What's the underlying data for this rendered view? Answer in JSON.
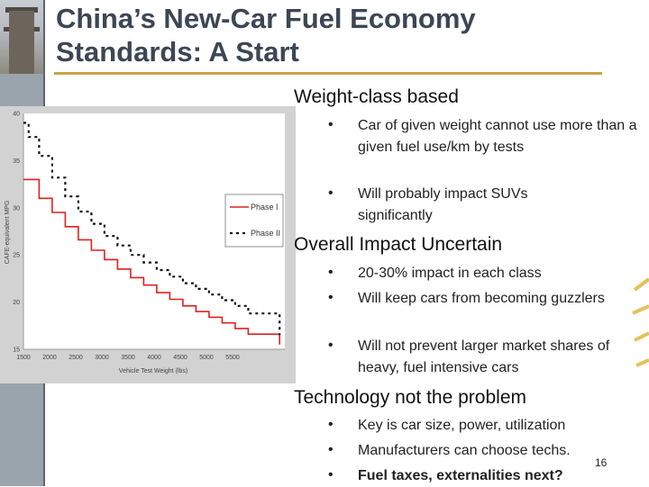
{
  "title": {
    "line1": "China’s  New-Car Fuel Economy",
    "line2": "Standards: A Start"
  },
  "sections": [
    {
      "heading": "Weight-class based",
      "bullets": [
        "Car of given weight cannot use more than a given fuel use/km by tests",
        "Will probably impact SUVs significantly"
      ]
    },
    {
      "heading": "Overall Impact Uncertain",
      "bullets": [
        "20-30% impact in each class",
        "Will keep cars from becoming guzzlers",
        "Will not prevent larger market shares of heavy, fuel intensive cars"
      ]
    },
    {
      "heading": "Technology not the problem",
      "bullets": [
        "Key is car size, power, utilization",
        "Manufacturers can choose techs.",
        "Fuel taxes, externalities next?"
      ]
    }
  ],
  "bullet_glyph": "•",
  "page_number": "16",
  "colors": {
    "title": "#3c4654",
    "underline": "#c9a34a",
    "phase1": "#e02020",
    "phase2": "#111111",
    "sidebar": "#9aa4ad"
  },
  "chart_data": {
    "type": "line",
    "title": "",
    "xlabel": "Vehicle Test Weight (lbs)",
    "ylabel": "CAFE-equivalent MPG",
    "xlim": [
      1500,
      6500
    ],
    "ylim": [
      15,
      40
    ],
    "x_ticks": [
      "1500",
      "2000",
      "2500",
      "3000",
      "3500",
      "4000",
      "4500",
      "5000",
      "5500"
    ],
    "y_ticks": [
      "15",
      "20",
      "25",
      "30",
      "35",
      "40"
    ],
    "legend_position": "right",
    "series": [
      {
        "name": "Phase I",
        "style": "solid",
        "x": [
          1500,
          1800,
          1800,
          2050,
          2050,
          2300,
          2300,
          2550,
          2550,
          2800,
          2800,
          3050,
          3050,
          3300,
          3300,
          3550,
          3550,
          3800,
          3800,
          4050,
          4050,
          4300,
          4300,
          4550,
          4550,
          4800,
          4800,
          5050,
          5050,
          5300,
          5300,
          5550,
          5550,
          5800,
          5800,
          6400,
          6400
        ],
        "y": [
          33,
          33,
          31,
          31,
          29.5,
          29.5,
          28,
          28,
          26.6,
          26.6,
          25.5,
          25.5,
          24.5,
          24.5,
          23.5,
          23.5,
          22.6,
          22.6,
          21.8,
          21.8,
          21,
          21,
          20.3,
          20.3,
          19.6,
          19.6,
          19,
          19,
          18.4,
          18.4,
          17.8,
          17.8,
          17.2,
          17.2,
          16.6,
          16.6,
          15.5
        ]
      },
      {
        "name": "Phase II",
        "style": "dotted",
        "x": [
          1500,
          1600,
          1600,
          1800,
          1800,
          2050,
          2050,
          2300,
          2300,
          2550,
          2550,
          2800,
          2800,
          3050,
          3050,
          3300,
          3300,
          3550,
          3550,
          3800,
          3800,
          4050,
          4050,
          4300,
          4300,
          4550,
          4550,
          4800,
          4800,
          5050,
          5050,
          5300,
          5300,
          5550,
          5550,
          5800,
          5800,
          6400,
          6400
        ],
        "y": [
          39,
          39,
          37.5,
          37.5,
          35.5,
          35.5,
          33.2,
          33.2,
          31.2,
          31.2,
          29.6,
          29.6,
          28.3,
          28.3,
          27,
          27,
          26,
          26,
          25,
          25,
          24.2,
          24.2,
          23.4,
          23.4,
          22.7,
          22.7,
          22,
          22,
          21.4,
          21.4,
          20.8,
          20.8,
          20.2,
          20.2,
          19.6,
          19.6,
          18.8,
          18.8,
          16.5
        ]
      }
    ]
  }
}
